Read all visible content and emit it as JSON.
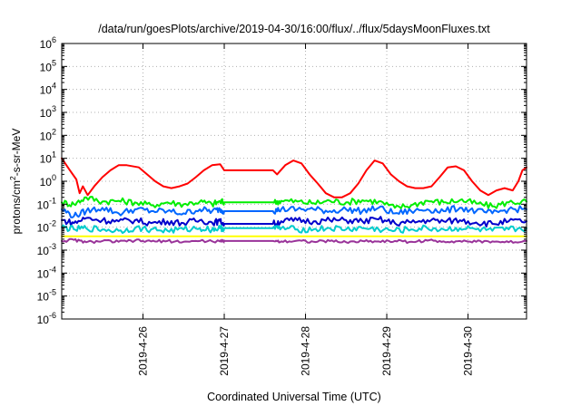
{
  "chart_data": {
    "type": "line",
    "title": "/data/run/goesPlots/archive/2019-04-30/16:00/flux/../flux/5daysMoonFluxes.txt",
    "xlabel": "Coordinated Universal Time (UTC)",
    "ylabel": {
      "pre": "protons/cm",
      "sup": "2",
      "post": "-s-sr-MeV"
    },
    "yscale": "log",
    "ylim": [
      1e-06,
      1000000.0
    ],
    "xlim": [
      0.0,
      5.72
    ],
    "x_units": "days since 2019-04-25 00:00 UTC",
    "grid": true,
    "yticks": [
      {
        "exp": -6,
        "base": "10",
        "sup": "-6"
      },
      {
        "exp": -5,
        "base": "10",
        "sup": "-5"
      },
      {
        "exp": -4,
        "base": "10",
        "sup": "-4"
      },
      {
        "exp": -3,
        "base": "10",
        "sup": "-3"
      },
      {
        "exp": -2,
        "base": "10",
        "sup": "-2"
      },
      {
        "exp": -1,
        "base": "10",
        "sup": "-1"
      },
      {
        "exp": 0,
        "base": "10",
        "sup": "0"
      },
      {
        "exp": 1,
        "base": "10",
        "sup": "1"
      },
      {
        "exp": 2,
        "base": "10",
        "sup": "2"
      },
      {
        "exp": 3,
        "base": "10",
        "sup": "3"
      },
      {
        "exp": 4,
        "base": "10",
        "sup": "4"
      },
      {
        "exp": 5,
        "base": "10",
        "sup": "5"
      },
      {
        "exp": 6,
        "base": "10",
        "sup": "6"
      }
    ],
    "xticks": [
      {
        "x": 1,
        "label": "2019-4-26"
      },
      {
        "x": 2,
        "label": "2019-4-27"
      },
      {
        "x": 3,
        "label": "2019-4-28"
      },
      {
        "x": 4,
        "label": "2019-4-29"
      },
      {
        "x": 5,
        "label": "2019-4-30"
      }
    ],
    "series": [
      {
        "color": "#ff0000",
        "points": [
          [
            0.0,
            10
          ],
          [
            0.1,
            3
          ],
          [
            0.18,
            1.2
          ],
          [
            0.22,
            0.3
          ],
          [
            0.26,
            0.6
          ],
          [
            0.32,
            0.25
          ],
          [
            0.4,
            0.6
          ],
          [
            0.5,
            1.5
          ],
          [
            0.6,
            3
          ],
          [
            0.7,
            5
          ],
          [
            0.8,
            5
          ],
          [
            0.95,
            4
          ],
          [
            1.05,
            2
          ],
          [
            1.15,
            1
          ],
          [
            1.25,
            0.6
          ],
          [
            1.35,
            0.5
          ],
          [
            1.45,
            0.6
          ],
          [
            1.55,
            0.8
          ],
          [
            1.65,
            1.5
          ],
          [
            1.75,
            3
          ],
          [
            1.85,
            5
          ],
          [
            1.95,
            5.5
          ],
          [
            2.0,
            3
          ],
          [
            2.6,
            3
          ],
          [
            2.65,
            2
          ],
          [
            2.75,
            5
          ],
          [
            2.85,
            8
          ],
          [
            2.95,
            6
          ],
          [
            3.05,
            2
          ],
          [
            3.15,
            0.8
          ],
          [
            3.25,
            0.3
          ],
          [
            3.35,
            0.2
          ],
          [
            3.45,
            0.2
          ],
          [
            3.55,
            0.3
          ],
          [
            3.65,
            0.8
          ],
          [
            3.75,
            3
          ],
          [
            3.85,
            8
          ],
          [
            3.95,
            6
          ],
          [
            4.05,
            2
          ],
          [
            4.15,
            1
          ],
          [
            4.25,
            0.6
          ],
          [
            4.35,
            0.5
          ],
          [
            4.45,
            0.5
          ],
          [
            4.55,
            0.6
          ],
          [
            4.65,
            1.5
          ],
          [
            4.75,
            4
          ],
          [
            4.85,
            4.5
          ],
          [
            4.95,
            3
          ],
          [
            5.05,
            1
          ],
          [
            5.15,
            0.4
          ],
          [
            5.25,
            0.25
          ],
          [
            5.35,
            0.4
          ],
          [
            5.45,
            0.5
          ],
          [
            5.55,
            0.4
          ],
          [
            5.62,
            1
          ],
          [
            5.67,
            3
          ],
          [
            5.72,
            4
          ]
        ]
      },
      {
        "color": "#00ee00",
        "points": [
          [
            0.0,
            0.12
          ],
          [
            0.15,
            0.1
          ],
          [
            0.3,
            0.2
          ],
          [
            0.5,
            0.13
          ],
          [
            0.7,
            0.14
          ],
          [
            0.9,
            0.12
          ],
          [
            1.1,
            0.09
          ],
          [
            1.3,
            0.12
          ],
          [
            1.5,
            0.1
          ],
          [
            1.7,
            0.13
          ],
          [
            1.85,
            0.1
          ],
          [
            1.95,
            0.13
          ],
          [
            2.0,
            0.12
          ],
          [
            2.6,
            0.12
          ],
          [
            2.7,
            0.14
          ],
          [
            2.9,
            0.13
          ],
          [
            3.1,
            0.11
          ],
          [
            3.3,
            0.14
          ],
          [
            3.5,
            0.12
          ],
          [
            3.7,
            0.15
          ],
          [
            3.9,
            0.13
          ],
          [
            4.1,
            0.07
          ],
          [
            4.3,
            0.09
          ],
          [
            4.5,
            0.14
          ],
          [
            4.7,
            0.12
          ],
          [
            4.9,
            0.15
          ],
          [
            5.1,
            0.11
          ],
          [
            5.3,
            0.08
          ],
          [
            5.5,
            0.12
          ],
          [
            5.72,
            0.13
          ]
        ]
      },
      {
        "color": "#0066ff",
        "points": [
          [
            0.0,
            0.06
          ],
          [
            0.15,
            0.03
          ],
          [
            0.3,
            0.05
          ],
          [
            0.5,
            0.07
          ],
          [
            0.7,
            0.04
          ],
          [
            0.9,
            0.06
          ],
          [
            1.1,
            0.05
          ],
          [
            1.3,
            0.05
          ],
          [
            1.5,
            0.04
          ],
          [
            1.7,
            0.06
          ],
          [
            1.85,
            0.05
          ],
          [
            1.95,
            0.06
          ],
          [
            2.0,
            0.05
          ],
          [
            2.6,
            0.05
          ],
          [
            2.7,
            0.06
          ],
          [
            2.9,
            0.06
          ],
          [
            3.1,
            0.06
          ],
          [
            3.3,
            0.05
          ],
          [
            3.5,
            0.06
          ],
          [
            3.7,
            0.05
          ],
          [
            3.9,
            0.07
          ],
          [
            4.1,
            0.04
          ],
          [
            4.3,
            0.05
          ],
          [
            4.5,
            0.06
          ],
          [
            4.7,
            0.05
          ],
          [
            4.9,
            0.07
          ],
          [
            5.1,
            0.05
          ],
          [
            5.3,
            0.04
          ],
          [
            5.5,
            0.06
          ],
          [
            5.72,
            0.06
          ]
        ]
      },
      {
        "color": "#0000cc",
        "points": [
          [
            0.0,
            0.02
          ],
          [
            0.15,
            0.015
          ],
          [
            0.3,
            0.025
          ],
          [
            0.5,
            0.02
          ],
          [
            0.7,
            0.018
          ],
          [
            0.9,
            0.02
          ],
          [
            1.1,
            0.015
          ],
          [
            1.3,
            0.018
          ],
          [
            1.5,
            0.015
          ],
          [
            1.7,
            0.02
          ],
          [
            1.85,
            0.016
          ],
          [
            1.95,
            0.018
          ],
          [
            2.0,
            0.014
          ],
          [
            2.6,
            0.014
          ],
          [
            2.7,
            0.018
          ],
          [
            2.9,
            0.02
          ],
          [
            3.1,
            0.018
          ],
          [
            3.3,
            0.02
          ],
          [
            3.5,
            0.02
          ],
          [
            3.7,
            0.018
          ],
          [
            3.9,
            0.022
          ],
          [
            4.1,
            0.015
          ],
          [
            4.3,
            0.016
          ],
          [
            4.5,
            0.02
          ],
          [
            4.7,
            0.018
          ],
          [
            4.9,
            0.02
          ],
          [
            5.1,
            0.016
          ],
          [
            5.3,
            0.014
          ],
          [
            5.5,
            0.018
          ],
          [
            5.72,
            0.018
          ]
        ]
      },
      {
        "color": "#00cccc",
        "points": [
          [
            0.0,
            0.01
          ],
          [
            0.15,
            0.008
          ],
          [
            0.3,
            0.009
          ],
          [
            0.5,
            0.008
          ],
          [
            0.7,
            0.007
          ],
          [
            0.9,
            0.009
          ],
          [
            1.1,
            0.008
          ],
          [
            1.3,
            0.007
          ],
          [
            1.5,
            0.008
          ],
          [
            1.7,
            0.009
          ],
          [
            1.85,
            0.008
          ],
          [
            1.95,
            0.009
          ],
          [
            2.0,
            0.009
          ],
          [
            2.6,
            0.009
          ],
          [
            2.7,
            0.009
          ],
          [
            2.9,
            0.008
          ],
          [
            3.1,
            0.008
          ],
          [
            3.3,
            0.009
          ],
          [
            3.5,
            0.008
          ],
          [
            3.7,
            0.009
          ],
          [
            3.9,
            0.008
          ],
          [
            4.1,
            0.007
          ],
          [
            4.3,
            0.008
          ],
          [
            4.5,
            0.009
          ],
          [
            4.7,
            0.008
          ],
          [
            4.9,
            0.009
          ],
          [
            5.1,
            0.008
          ],
          [
            5.3,
            0.007
          ],
          [
            5.5,
            0.008
          ],
          [
            5.72,
            0.009
          ]
        ]
      },
      {
        "color": "#ffff00",
        "points": [
          [
            0.0,
            0.004
          ],
          [
            1.0,
            0.004
          ],
          [
            2.0,
            0.004
          ],
          [
            3.0,
            0.004
          ],
          [
            4.0,
            0.004
          ],
          [
            5.0,
            0.004
          ],
          [
            5.72,
            0.004
          ]
        ]
      },
      {
        "color": "#993399",
        "points": [
          [
            0.0,
            0.0025
          ],
          [
            0.15,
            0.0028
          ],
          [
            0.3,
            0.0022
          ],
          [
            0.5,
            0.0025
          ],
          [
            0.7,
            0.0023
          ],
          [
            0.9,
            0.0026
          ],
          [
            1.1,
            0.0024
          ],
          [
            1.3,
            0.0025
          ],
          [
            1.5,
            0.0023
          ],
          [
            1.7,
            0.0025
          ],
          [
            1.95,
            0.0024
          ],
          [
            2.0,
            0.0025
          ],
          [
            2.6,
            0.0025
          ],
          [
            2.7,
            0.0024
          ],
          [
            2.9,
            0.0026
          ],
          [
            3.1,
            0.0023
          ],
          [
            3.3,
            0.0025
          ],
          [
            3.5,
            0.0022
          ],
          [
            3.7,
            0.0025
          ],
          [
            3.9,
            0.0024
          ],
          [
            4.1,
            0.0025
          ],
          [
            4.3,
            0.0023
          ],
          [
            4.5,
            0.0026
          ],
          [
            4.7,
            0.0024
          ],
          [
            4.9,
            0.0025
          ],
          [
            5.1,
            0.0023
          ],
          [
            5.3,
            0.0024
          ],
          [
            5.5,
            0.0022
          ],
          [
            5.72,
            0.0025
          ]
        ]
      }
    ]
  }
}
